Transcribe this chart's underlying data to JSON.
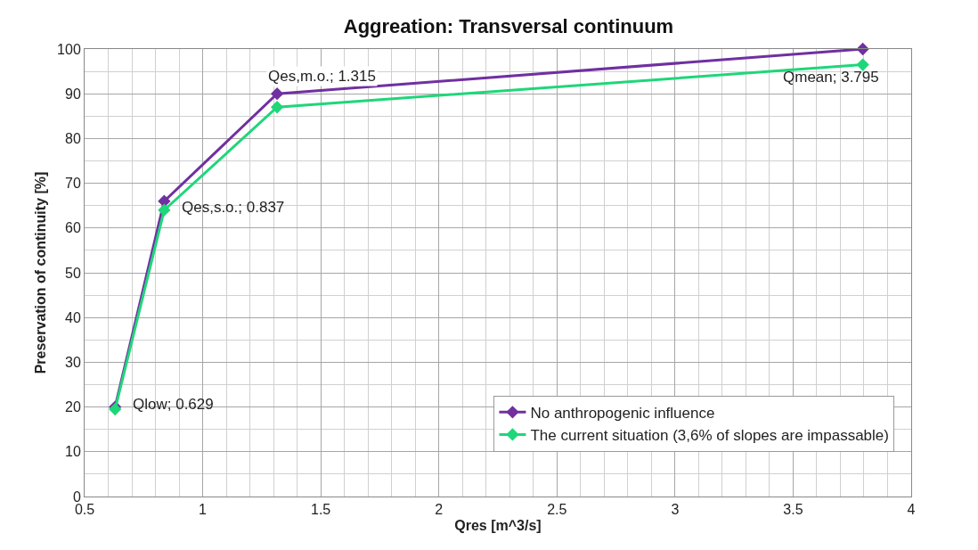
{
  "chart_data": {
    "type": "line",
    "title": "Aggreation: Transversal continuum",
    "xlabel": "Qres [m^3/s]",
    "ylabel": "Preservation of continuity [%]",
    "x": [
      0.629,
      0.837,
      1.315,
      3.795
    ],
    "series": [
      {
        "name": "No anthropogenic influence",
        "color": "#7030a0",
        "values": [
          20,
          66,
          90,
          100
        ]
      },
      {
        "name": "The current situation (3,6% of slopes are impassable)",
        "color": "#1fd67a",
        "values": [
          19.5,
          64,
          87,
          96.5
        ]
      }
    ],
    "annotations": [
      {
        "text": "Qlow; 0.629",
        "x": 0.629,
        "y": 20
      },
      {
        "text": "Qes,s.o.; 0.837",
        "x": 0.837,
        "y": 64
      },
      {
        "text": "Qes,m.o.; 1.315",
        "x": 1.315,
        "y": 90
      },
      {
        "text": "Qmean; 3.795",
        "x": 3.795,
        "y": 96.5
      }
    ],
    "xlim": [
      0.5,
      4
    ],
    "xticks": [
      {
        "value": 0.5,
        "label": "0.5"
      },
      1,
      {
        "value": 1.5,
        "label": "1.5"
      },
      2,
      {
        "value": 2.5,
        "label": "2.5"
      },
      3,
      {
        "value": 3.5,
        "label": "3.5"
      },
      4
    ],
    "ylim": [
      0,
      100
    ],
    "yticks": [
      0,
      10,
      20,
      30,
      40,
      50,
      60,
      70,
      80,
      90,
      100
    ],
    "grid": true,
    "legend": "bottom right",
    "marker": "diamond",
    "line_style": "solid"
  }
}
